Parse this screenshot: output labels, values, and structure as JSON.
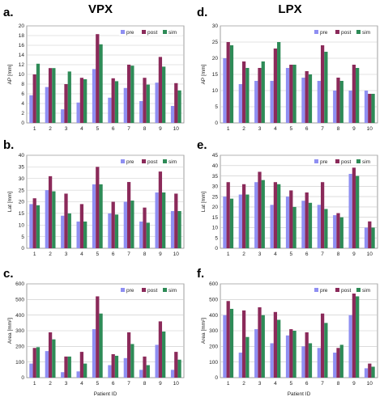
{
  "figure": {
    "columns": [
      "VPX",
      "LPX"
    ],
    "xlabel_bottom": "Patient ID",
    "series_names": [
      "pre",
      "post",
      "sim"
    ],
    "colors": {
      "pre": "#8f8ff2",
      "post": "#8b2a5a",
      "sim": "#2e8b57",
      "grid": "#c8c8c8",
      "axis": "#888888"
    }
  },
  "chart_data": [
    {
      "panel": "a.",
      "type": "bar",
      "categories": [
        "1",
        "2",
        "3",
        "4",
        "5",
        "6",
        "7",
        "8",
        "9",
        "10"
      ],
      "ylabel": "AP [mm]",
      "xlabel": "",
      "ylim": [
        0,
        20
      ],
      "yticks": [
        0,
        2,
        4,
        6,
        8,
        10,
        12,
        14,
        16,
        18,
        20
      ],
      "series": [
        {
          "name": "pre",
          "values": [
            5.7,
            7.4,
            2.8,
            4.2,
            11.1,
            5.2,
            7.2,
            4.5,
            8.3,
            3.5
          ]
        },
        {
          "name": "post",
          "values": [
            10.0,
            11.3,
            8.0,
            9.3,
            18.3,
            9.2,
            12.0,
            9.3,
            13.6,
            8.2
          ]
        },
        {
          "name": "sim",
          "values": [
            12.2,
            11.3,
            10.6,
            9.0,
            16.2,
            8.6,
            11.8,
            7.9,
            11.6,
            6.7
          ]
        }
      ]
    },
    {
      "panel": "d.",
      "type": "bar",
      "categories": [
        "1",
        "2",
        "3",
        "4",
        "5",
        "6",
        "7",
        "8",
        "9",
        "10"
      ],
      "ylabel": "AP [mm]",
      "xlabel": "",
      "ylim": [
        0,
        30
      ],
      "yticks": [
        0,
        5,
        10,
        15,
        20,
        25,
        30
      ],
      "series": [
        {
          "name": "pre",
          "values": [
            20.0,
            12.0,
            13.0,
            13.0,
            17.0,
            14.0,
            13.0,
            10.0,
            10.0,
            10.0
          ]
        },
        {
          "name": "post",
          "values": [
            25.0,
            19.0,
            17.0,
            23.0,
            18.0,
            16.0,
            24.0,
            14.0,
            18.0,
            9.0
          ]
        },
        {
          "name": "sim",
          "values": [
            24.0,
            17.0,
            19.0,
            25.0,
            18.0,
            15.0,
            22.0,
            13.0,
            17.0,
            9.0
          ]
        }
      ]
    },
    {
      "panel": "b.",
      "type": "bar",
      "categories": [
        "1",
        "2",
        "3",
        "4",
        "5",
        "6",
        "7",
        "8",
        "9",
        "10"
      ],
      "ylabel": "Lat [mm]",
      "xlabel": "",
      "ylim": [
        0,
        40
      ],
      "yticks": [
        0,
        5,
        10,
        15,
        20,
        25,
        30,
        35,
        40
      ],
      "series": [
        {
          "name": "pre",
          "values": [
            19.0,
            25.0,
            14.0,
            11.5,
            27.5,
            15.0,
            20.0,
            11.5,
            24.0,
            16.0
          ]
        },
        {
          "name": "post",
          "values": [
            21.5,
            31.0,
            23.5,
            19.0,
            35.0,
            20.0,
            28.5,
            17.5,
            33.0,
            23.5
          ]
        },
        {
          "name": "sim",
          "values": [
            18.5,
            24.5,
            15.0,
            11.5,
            27.5,
            14.5,
            20.5,
            11.0,
            24.0,
            16.0
          ]
        }
      ]
    },
    {
      "panel": "e.",
      "type": "bar",
      "categories": [
        "1",
        "2",
        "3",
        "4",
        "5",
        "6",
        "7",
        "8",
        "9",
        "10"
      ],
      "ylabel": "Lat [mm]",
      "xlabel": "",
      "ylim": [
        0,
        45
      ],
      "yticks": [
        0,
        5,
        10,
        15,
        20,
        25,
        30,
        35,
        40,
        45
      ],
      "series": [
        {
          "name": "pre",
          "values": [
            25.0,
            26.0,
            32.0,
            21.0,
            25.0,
            23.0,
            21.0,
            16.0,
            36.0,
            10.0
          ]
        },
        {
          "name": "post",
          "values": [
            32.0,
            31.0,
            37.0,
            32.0,
            28.0,
            27.0,
            32.0,
            17.0,
            39.0,
            13.0
          ]
        },
        {
          "name": "sim",
          "values": [
            24.0,
            26.0,
            33.0,
            31.0,
            20.0,
            22.0,
            19.0,
            15.0,
            35.0,
            10.0
          ]
        }
      ]
    },
    {
      "panel": "c.",
      "type": "bar",
      "categories": [
        "1",
        "2",
        "3",
        "4",
        "5",
        "6",
        "7",
        "8",
        "9",
        "10"
      ],
      "ylabel": "Area [mm²]",
      "xlabel": "Patient ID",
      "ylim": [
        0,
        600
      ],
      "yticks": [
        0,
        100,
        200,
        300,
        400,
        500,
        600
      ],
      "series": [
        {
          "name": "pre",
          "values": [
            90,
            170,
            35,
            40,
            310,
            80,
            125,
            50,
            210,
            50
          ]
        },
        {
          "name": "post",
          "values": [
            190,
            290,
            135,
            165,
            520,
            150,
            290,
            135,
            360,
            165
          ]
        },
        {
          "name": "sim",
          "values": [
            195,
            245,
            135,
            90,
            410,
            140,
            215,
            80,
            295,
            115
          ]
        }
      ]
    },
    {
      "panel": "f.",
      "type": "bar",
      "categories": [
        "1",
        "2",
        "3",
        "4",
        "5",
        "6",
        "7",
        "8",
        "9",
        "10"
      ],
      "ylabel": "Area [mm²]",
      "xlabel": "Patient ID",
      "ylim": [
        0,
        600
      ],
      "yticks": [
        0,
        100,
        200,
        300,
        400,
        500,
        600
      ],
      "series": [
        {
          "name": "pre",
          "values": [
            400,
            160,
            310,
            220,
            270,
            200,
            190,
            160,
            400,
            60
          ]
        },
        {
          "name": "post",
          "values": [
            490,
            430,
            450,
            420,
            310,
            290,
            410,
            190,
            550,
            90
          ]
        },
        {
          "name": "sim",
          "values": [
            440,
            260,
            400,
            370,
            300,
            220,
            350,
            210,
            520,
            70
          ]
        }
      ]
    }
  ]
}
